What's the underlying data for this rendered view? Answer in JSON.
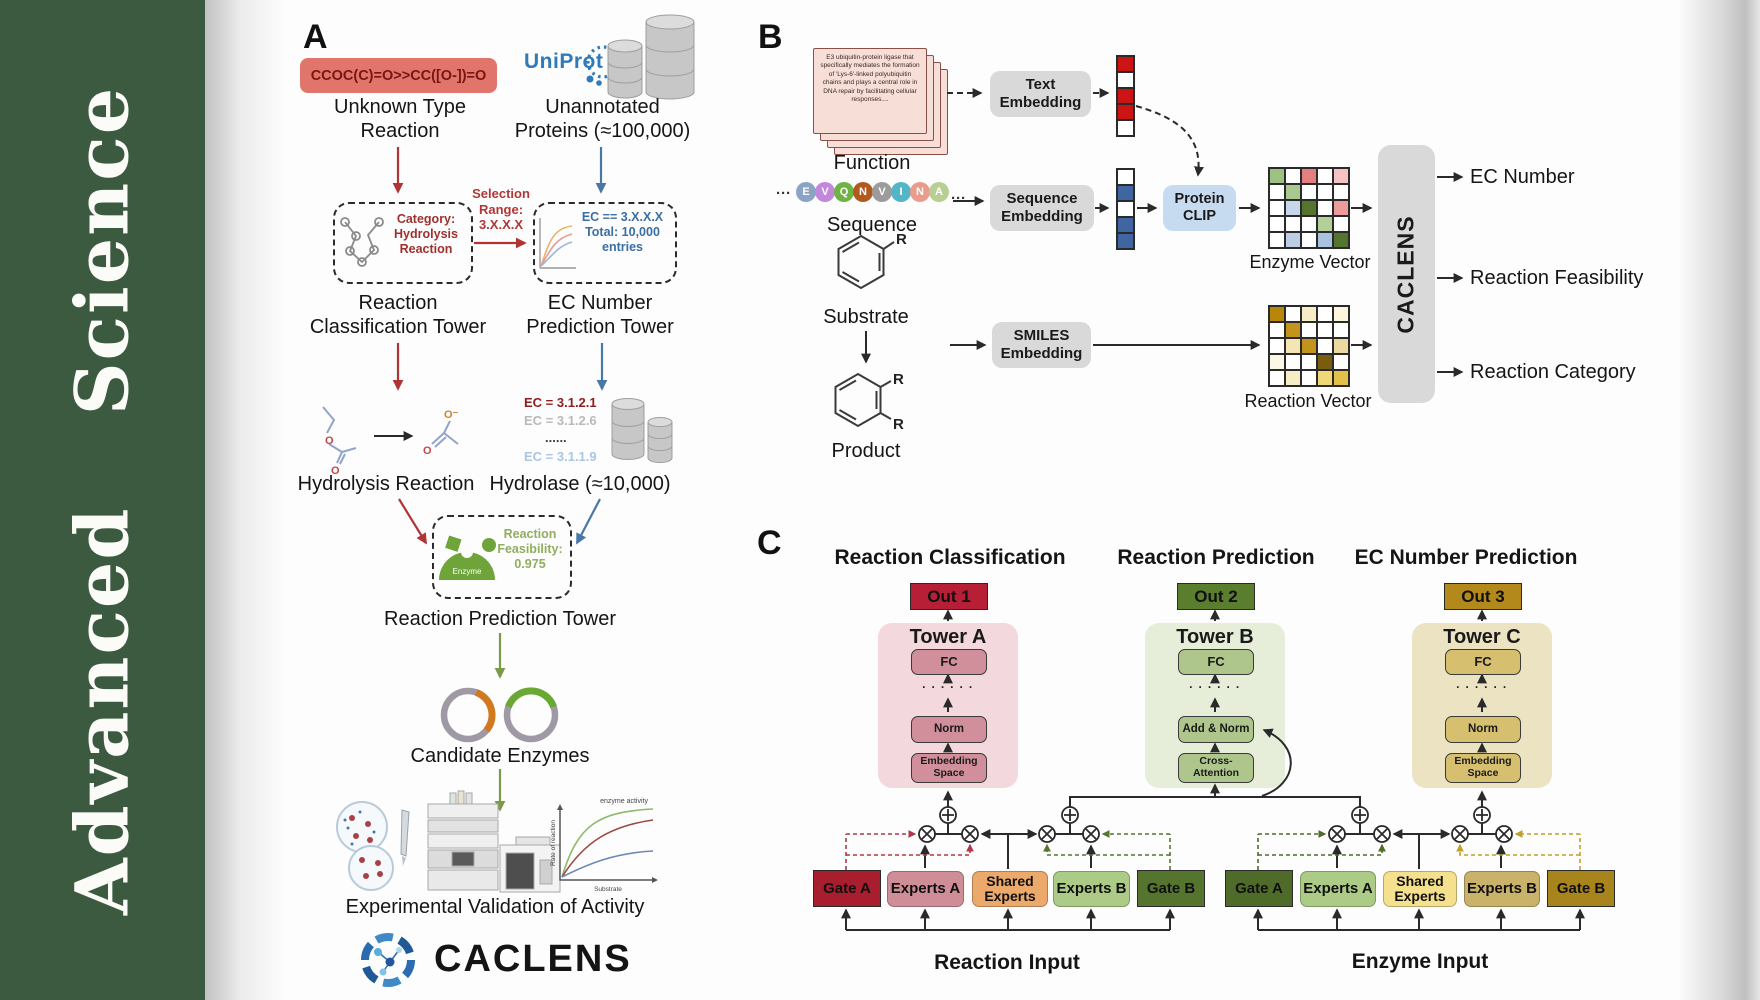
{
  "journal": {
    "title": "Advanced Science"
  },
  "panelA": {
    "label": "A",
    "smiles_box": "CCOC(C)=O>>CC([O-])=O",
    "unknown_caption": "Unknown Type\nReaction",
    "uniprot": "UniProt",
    "unannotated_caption": "Unannotated\nProteins (≈100,000)",
    "classification_box": "Category:\nHydrolysis\nReaction",
    "classification_box_color": "#a03030",
    "selection_label": "Selection\nRange:\n3.X.X.X",
    "selection_color": "#b33636",
    "ec_box": "EC == 3.X.X.X\nTotal: 10,000\nentries",
    "ec_box_color": "#3a6ea5",
    "classification_tower_caption": "Reaction\nClassification Tower",
    "ec_tower_caption": "EC Number\nPrediction Tower",
    "hydrolysis_caption": "Hydrolysis Reaction",
    "hydrolase_caption": "Hydrolase (≈10,000)",
    "ec_list": [
      {
        "text": "EC = 3.1.2.1",
        "color": "#8f1d1d"
      },
      {
        "text": "EC = 3.1.2.6",
        "color": "#b9b9b9"
      },
      {
        "text": "......",
        "color": "#3a3a3a"
      },
      {
        "text": "EC = 3.1.1.9",
        "color": "#a9c6e4"
      }
    ],
    "enzyme_icon_label": "Enzyme",
    "feasibility_box": "Reaction\nFeasibility:\n0.975",
    "prediction_tower_caption": "Reaction Prediction Tower",
    "candidate_caption": "Candidate Enzymes",
    "validation_caption": "Experimental Validation of Activity",
    "graph": {
      "curve_label": "enzyme activity",
      "ylabel": "Rate of reaction",
      "xlabel": "Substrate"
    },
    "brand": "CACLENS"
  },
  "panelB": {
    "label": "B",
    "function_card_text": "E3 ubiquitin-protein ligase that specifically mediates the formation of 'Lys-6'-linked polyubiquitin chains and plays a central role in DNA repair by facilitating cellular responses....",
    "function_caption": "Function",
    "ellipsis": "···",
    "sequence": [
      {
        "letter": "E",
        "color": "#8ba3c4"
      },
      {
        "letter": "V",
        "color": "#c387dc"
      },
      {
        "letter": "Q",
        "color": "#6fb344"
      },
      {
        "letter": "N",
        "color": "#b2591e"
      },
      {
        "letter": "V",
        "color": "#9c9c9c"
      },
      {
        "letter": "I",
        "color": "#53b5c6"
      },
      {
        "letter": "N",
        "color": "#e99c8b"
      },
      {
        "letter": "A",
        "color": "#b8cf94"
      }
    ],
    "sequence_caption": "Sequence",
    "substrate_caption": "Substrate",
    "product_caption": "Product",
    "r_label": "R",
    "text_embedding": "Text\nEmbedding",
    "sequence_embedding": "Sequence\nEmbedding",
    "smiles_embedding": "SMILES\nEmbedding",
    "protein_clip": "Protein\nCLIP",
    "text_vector": [
      "#cc1414",
      "#ffffff",
      "#cc1414",
      "#cc1414",
      "#ffffff"
    ],
    "sequence_vector": [
      "#ffffff",
      "#3f66a0",
      "#ffffff",
      "#3f66a0",
      "#3f66a0"
    ],
    "enzyme_matrix": [
      [
        "#9dc183",
        "#ffffff",
        "#e37f7f",
        "#ffffff",
        "#f4c2c2"
      ],
      [
        "#ffffff",
        "#a9c98f",
        "#ffffff",
        "#ffffff",
        "#ffffff"
      ],
      [
        "#ffffff",
        "#c6d7ec",
        "#55752f",
        "#ffffff",
        "#ec9b9b"
      ],
      [
        "#ffffff",
        "#ffffff",
        "#ffffff",
        "#b3d09a",
        "#ffffff"
      ],
      [
        "#ffffff",
        "#bccde4",
        "#ffffff",
        "#a9c3df",
        "#55752f"
      ]
    ],
    "reaction_matrix": [
      [
        "#b8860b",
        "#ffffff",
        "#f7edc4",
        "#ffffff",
        "#fdf6dd"
      ],
      [
        "#ffffff",
        "#c3941c",
        "#ffffff",
        "#ffffff",
        "#ffffff"
      ],
      [
        "#ffffff",
        "#f3e6b4",
        "#c3941c",
        "#ffffff",
        "#ecd9a0"
      ],
      [
        "#fdf8e4",
        "#ffffff",
        "#ffffff",
        "#7a5c0e",
        "#ffffff"
      ],
      [
        "#ffffff",
        "#f7edc4",
        "#ffffff",
        "#f0d878",
        "#e3c04a"
      ]
    ],
    "enzyme_vector_caption": "Enzyme Vector",
    "reaction_vector_caption": "Reaction Vector",
    "model_name": "CACLENS",
    "outputs": [
      "EC Number",
      "Reaction Feasibility",
      "Reaction Category"
    ]
  },
  "panelC": {
    "label": "C",
    "headers": [
      "Reaction Classification",
      "Reaction Prediction",
      "EC Number Prediction"
    ],
    "dots": "· · · · · ·",
    "towers": [
      {
        "out": "Out 1",
        "out_bg": "#b61f36",
        "title": "Tower A",
        "bg": "#f3d9dd",
        "box_bg": "#d18e9b",
        "top": "FC",
        "mid": "Norm",
        "bottom": "Embedding\nSpace"
      },
      {
        "out": "Out 2",
        "out_bg": "#5a7d2e",
        "title": "Tower B",
        "bg": "#e6edd9",
        "box_bg": "#aec68c",
        "top": "FC",
        "mid": "Add & Norm",
        "bottom": "Cross-\nAttention"
      },
      {
        "out": "Out 3",
        "out_bg": "#b3891b",
        "title": "Tower C",
        "bg": "#ece3c3",
        "box_bg": "#d7bf70",
        "top": "FC",
        "mid": "Norm",
        "bottom": "Embedding\nSpace"
      }
    ],
    "reaction_group": {
      "caption": "Reaction Input",
      "boxes": [
        {
          "label": "Gate A",
          "bg": "#a81e2e"
        },
        {
          "label": "Experts A",
          "bg": "#cf8e97"
        },
        {
          "label": "Shared\nExperts",
          "bg": "#eba96b"
        },
        {
          "label": "Experts B",
          "bg": "#abcb86"
        },
        {
          "label": "Gate B",
          "bg": "#55752f"
        }
      ]
    },
    "enzyme_group": {
      "caption": "Enzyme Input",
      "boxes": [
        {
          "label": "Gate A",
          "bg": "#4e6b2a"
        },
        {
          "label": "Experts A",
          "bg": "#abcb86"
        },
        {
          "label": "Shared\nExperts",
          "bg": "#f5e08d"
        },
        {
          "label": "Experts B",
          "bg": "#c9b26a"
        },
        {
          "label": "Gate B",
          "bg": "#a8851c"
        }
      ]
    }
  }
}
